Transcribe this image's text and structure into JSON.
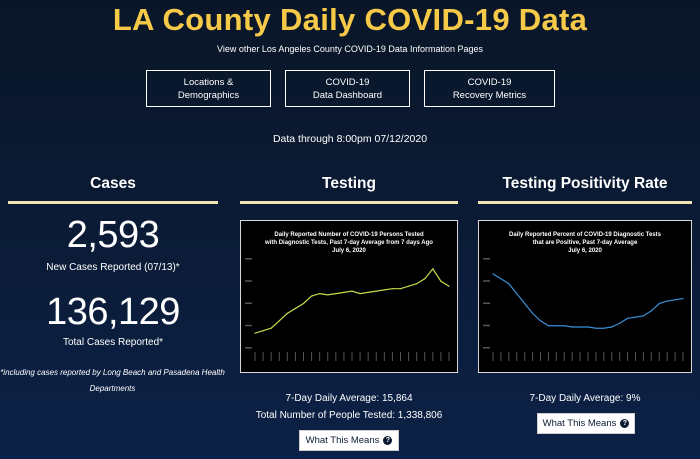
{
  "header": {
    "title": "LA County Daily COVID-19 Data",
    "subtitle": "View other Los Angeles County COVID-19 Data Information Pages"
  },
  "nav_buttons": [
    {
      "line1": "Locations &",
      "line2": "Demographics"
    },
    {
      "line1": "COVID-19",
      "line2": "Data Dashboard"
    },
    {
      "line1": "COVID-19",
      "line2": "Recovery Metrics"
    }
  ],
  "data_through": "Data through 8:00pm 07/12/2020",
  "cases": {
    "heading": "Cases",
    "new_cases_value": "2,593",
    "new_cases_label": "New Cases Reported (07/13)*",
    "total_cases_value": "136,129",
    "total_cases_label": "Total Cases Reported*",
    "footnote": "*including cases reported by Long Beach and Pasadena Health Departments"
  },
  "testing": {
    "heading": "Testing",
    "chart_title_lines": [
      "Daily Reported Number of COVID-19 Persons Tested",
      "with Diagnostic Tests, Past 7-day Average from 7 days Ago",
      "July 6, 2020"
    ],
    "avg_label": "7-Day Daily Average: 15,864",
    "total_label": "Total Number of People Tested: 1,338,806",
    "button_label": "What This Means",
    "line_color": "#c6d94a"
  },
  "positivity": {
    "heading": "Testing Positivity Rate",
    "chart_title_lines": [
      "Daily Reported Percent of COVID-19 Diagnostic Tests",
      "that are Positive, Past 7-day Average",
      "July 6, 2020"
    ],
    "avg_label": "7-Day Daily Average: 9%",
    "button_label": "What This Means",
    "line_color": "#3b8fd6"
  },
  "chart_data": [
    {
      "type": "line",
      "series": [
        {
          "values": [
            6,
            7,
            8,
            11,
            14,
            16,
            18,
            21,
            22,
            21.5,
            22,
            22.5,
            23,
            22,
            22.5,
            23,
            23.5,
            24,
            24,
            25,
            26,
            28,
            32,
            27,
            25
          ]
        }
      ],
      "ylim": [
        0,
        36
      ]
    },
    {
      "type": "line",
      "series": [
        {
          "values": [
            30,
            28,
            26,
            22,
            18,
            14,
            11,
            9,
            9,
            9,
            8.5,
            8.5,
            8.5,
            8,
            8,
            8.5,
            10,
            12,
            12.5,
            13,
            15,
            18,
            19,
            19.5,
            20
          ]
        }
      ],
      "ylim": [
        0,
        36
      ]
    }
  ]
}
